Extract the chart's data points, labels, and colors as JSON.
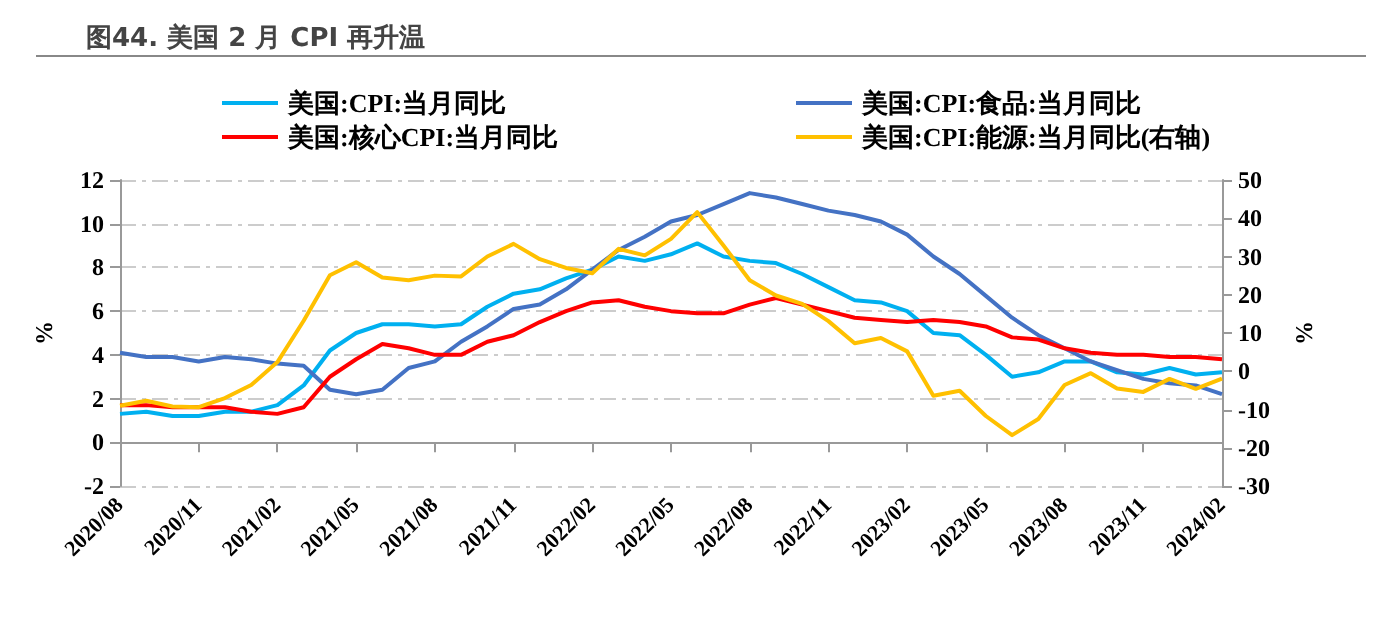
{
  "chart_data": {
    "type": "line",
    "title": "图44. 美国 2 月 CPI 再升温",
    "categories": [
      "2020/08",
      null,
      null,
      "2020/11",
      null,
      null,
      "2021/02",
      null,
      null,
      "2021/05",
      null,
      null,
      "2021/08",
      null,
      null,
      "2021/11",
      null,
      null,
      "2022/02",
      null,
      null,
      "2022/05",
      null,
      null,
      "2022/08",
      null,
      null,
      "2022/11",
      null,
      null,
      "2023/02",
      null,
      null,
      "2023/05",
      null,
      null,
      "2023/08",
      null,
      null,
      "2023/11",
      null,
      null,
      "2024/02"
    ],
    "series": [
      {
        "name": "美国:CPI:当月同比",
        "color": "#00b0f0",
        "values": [
          1.3,
          1.4,
          1.2,
          1.2,
          1.4,
          1.4,
          1.7,
          2.6,
          4.2,
          5.0,
          5.4,
          5.4,
          5.3,
          5.4,
          6.2,
          6.8,
          7.0,
          7.5,
          7.9,
          8.5,
          8.3,
          8.6,
          9.1,
          8.5,
          8.3,
          8.2,
          7.7,
          7.1,
          6.5,
          6.4,
          6.0,
          5.0,
          4.9,
          4.0,
          3.0,
          3.2,
          3.7,
          3.7,
          3.2,
          3.1,
          3.4,
          3.1,
          3.2
        ]
      },
      {
        "name": "美国:CPI:食品:当月同比",
        "color": "#4472c4",
        "values": [
          4.1,
          3.9,
          3.9,
          3.7,
          3.9,
          3.8,
          3.6,
          3.5,
          2.4,
          2.2,
          2.4,
          3.4,
          3.7,
          4.6,
          5.3,
          6.1,
          6.3,
          7.0,
          7.9,
          8.8,
          9.4,
          10.1,
          10.4,
          10.9,
          11.4,
          11.2,
          10.9,
          10.6,
          10.4,
          10.1,
          9.5,
          8.5,
          7.7,
          6.7,
          5.7,
          4.9,
          4.3,
          3.7,
          3.3,
          2.9,
          2.7,
          2.6,
          2.2
        ]
      },
      {
        "name": "美国:核心CPI:当月同比",
        "color": "#ff0000",
        "values": [
          1.7,
          1.7,
          1.6,
          1.6,
          1.6,
          1.4,
          1.3,
          1.6,
          3.0,
          3.8,
          4.5,
          4.3,
          4.0,
          4.0,
          4.6,
          4.9,
          5.5,
          6.0,
          6.4,
          6.5,
          6.2,
          6.0,
          5.9,
          5.9,
          6.3,
          6.6,
          6.3,
          6.0,
          5.7,
          5.6,
          5.5,
          5.6,
          5.5,
          5.3,
          4.8,
          4.7,
          4.3,
          4.1,
          4.0,
          4.0,
          3.9,
          3.9,
          3.8
        ]
      },
      {
        "name": "美国:CPI:能源:当月同比(右轴)",
        "color": "#ffc000",
        "axis": "y2",
        "values": [
          -9.0,
          -7.7,
          -9.2,
          -9.4,
          -7.0,
          -3.6,
          2.4,
          13.2,
          25.1,
          28.5,
          24.5,
          23.8,
          25.0,
          24.8,
          30.0,
          33.3,
          29.3,
          27.0,
          25.6,
          32.0,
          30.3,
          34.6,
          41.6,
          32.9,
          23.8,
          19.8,
          17.6,
          13.1,
          7.3,
          8.7,
          5.2,
          -6.4,
          -5.1,
          -11.7,
          -16.7,
          -12.5,
          -3.6,
          -0.5,
          -4.5,
          -5.4,
          -2.0,
          -4.6,
          -1.9
        ]
      }
    ],
    "ylabel": "%",
    "y2label": "%",
    "ylim": [
      -2,
      12
    ],
    "yticks": [
      -2,
      0,
      2,
      4,
      6,
      8,
      10,
      12
    ],
    "y2lim": [
      -30,
      50
    ],
    "y2ticks": [
      -30,
      -20,
      -10,
      0,
      10,
      20,
      30,
      40,
      50
    ],
    "grid": "y",
    "legend": "top",
    "marker": "none",
    "line_style": "solid"
  }
}
